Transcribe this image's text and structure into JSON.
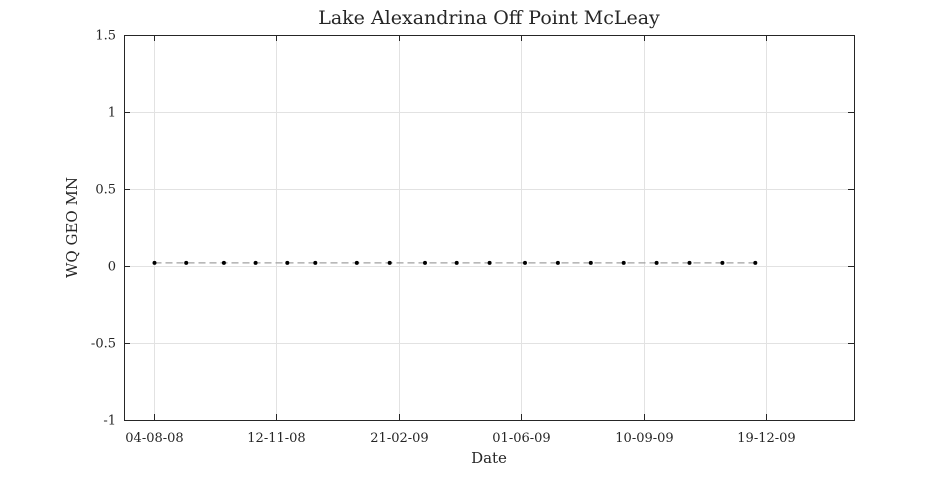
{
  "chart_data": {
    "type": "scatter",
    "title": "Lake Alexandrina Off Point McLeay",
    "xlabel": "Date",
    "ylabel": "WQ GEO MN",
    "x_tick_labels": [
      "04-08-08",
      "12-11-08",
      "21-02-09",
      "01-06-09",
      "10-09-09",
      "19-12-09"
    ],
    "y_tick_labels": [
      "-1",
      "-0.5",
      "0",
      "0.5",
      "1",
      "1.5"
    ],
    "ylim": [
      -1,
      1.5
    ],
    "xlim": [
      "2008-07-10",
      "2010-03-01"
    ],
    "grid": true,
    "series": [
      {
        "style": "dashed-line-with-dots",
        "color": "#000000",
        "line_color": "#a0a0a0",
        "points": [
          {
            "x": "2008-08-04",
            "y": 0.02
          },
          {
            "x": "2008-08-30",
            "y": 0.02
          },
          {
            "x": "2008-09-30",
            "y": 0.02
          },
          {
            "x": "2008-10-26",
            "y": 0.02
          },
          {
            "x": "2008-11-21",
            "y": 0.02
          },
          {
            "x": "2008-12-14",
            "y": 0.02
          },
          {
            "x": "2009-01-17",
            "y": 0.02
          },
          {
            "x": "2009-02-13",
            "y": 0.02
          },
          {
            "x": "2009-03-14",
            "y": 0.02
          },
          {
            "x": "2009-04-09",
            "y": 0.02
          },
          {
            "x": "2009-05-06",
            "y": 0.02
          },
          {
            "x": "2009-06-04",
            "y": 0.02
          },
          {
            "x": "2009-07-01",
            "y": 0.02
          },
          {
            "x": "2009-07-28",
            "y": 0.02
          },
          {
            "x": "2009-08-24",
            "y": 0.02
          },
          {
            "x": "2009-09-20",
            "y": 0.02
          },
          {
            "x": "2009-10-17",
            "y": 0.02
          },
          {
            "x": "2009-11-13",
            "y": 0.02
          },
          {
            "x": "2009-12-10",
            "y": 0.02
          }
        ]
      }
    ]
  }
}
